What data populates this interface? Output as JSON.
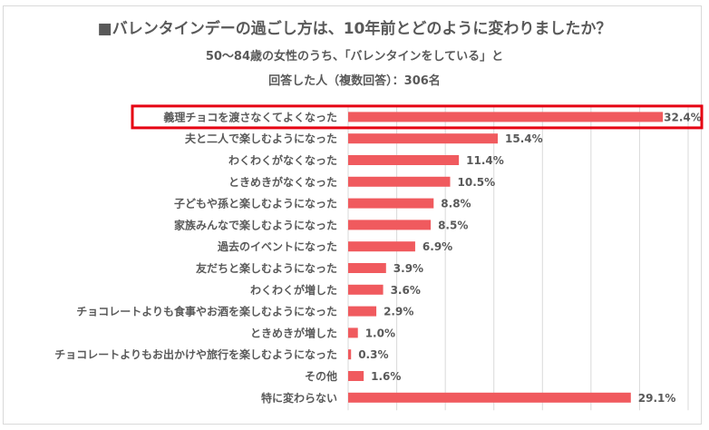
{
  "chart_data": {
    "type": "bar",
    "orientation": "horizontal",
    "title": "■バレンタインデーの過ごし方は、10年前とどのように変わりましたか？",
    "subtitle_lines": [
      "50～84歳の女性のうち、「バレンタインをしている」と",
      "回答した人（複数回答）：306名"
    ],
    "categories": [
      "義理チョコを渡さなくてよくなった",
      "夫と二人で楽しむようになった",
      "わくわくがなくなった",
      "ときめきがなくなった",
      "子どもや孫と楽しむようになった",
      "家族みんなで楽しむようになった",
      "過去のイベントになった",
      "友だちと楽しむようになった",
      "わくわくが増した",
      "チョコレートよりも食事やお酒を楽しむようになった",
      "ときめきが増した",
      "チョコレートよりもお出かけや旅行を楽しむようになった",
      "その他",
      "特に変わらない"
    ],
    "values": [
      32.4,
      15.4,
      11.4,
      10.5,
      8.8,
      8.5,
      6.9,
      3.9,
      3.6,
      2.9,
      1.0,
      0.3,
      1.6,
      29.1
    ],
    "data_labels": [
      "32.4%",
      "15.4%",
      "11.4%",
      "10.5%",
      "8.8%",
      "8.5%",
      "6.9%",
      "3.9%",
      "3.6%",
      "2.9%",
      "1.0%",
      "0.3%",
      "1.6%",
      "29.1%"
    ],
    "xlim": [
      0,
      35
    ],
    "grid": true,
    "highlighted_category": "義理チョコを渡さなくてよくなった",
    "colors": {
      "bar": "#f05a5e",
      "highlight_box": "#e60012",
      "grid": "#d9d9d9",
      "text": "#595959"
    }
  }
}
